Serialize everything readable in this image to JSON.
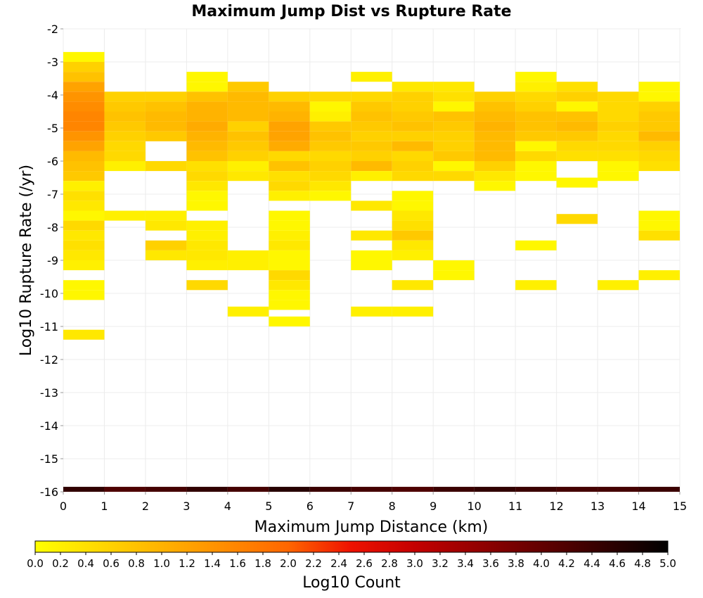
{
  "chart_data": {
    "type": "heatmap",
    "title": "Maximum Jump Dist vs Rupture Rate",
    "xlabel": "Maximum Jump Distance (km)",
    "ylabel": "Log10 Rupture Rate (/yr)",
    "colorbar_label": "Log10 Count",
    "xlim": [
      0,
      15
    ],
    "ylim": [
      -16,
      -2
    ],
    "x_ticks": [
      0,
      1,
      2,
      3,
      4,
      5,
      6,
      7,
      8,
      9,
      10,
      11,
      12,
      13,
      14,
      15
    ],
    "y_ticks": [
      -2,
      -3,
      -4,
      -5,
      -6,
      -7,
      -8,
      -9,
      -10,
      -11,
      -12,
      -13,
      -14,
      -15,
      -16
    ],
    "color_range": [
      0.0,
      5.0
    ],
    "colorbar_ticks": [
      "0.0",
      "0.2",
      "0.4",
      "0.6",
      "0.8",
      "1.0",
      "1.2",
      "1.4",
      "1.6",
      "1.8",
      "2.0",
      "2.2",
      "2.4",
      "2.6",
      "2.8",
      "3.0",
      "3.2",
      "3.4",
      "3.6",
      "3.8",
      "4.0",
      "4.2",
      "4.4",
      "4.6",
      "4.8",
      "5.0"
    ],
    "colormap": [
      "#ffff00",
      "#ff6600",
      "#cc0000",
      "#000000"
    ],
    "grid": true,
    "x_bin_width": 1,
    "y_bin_height": 0.3,
    "cells": [
      [
        0,
        -2.85,
        0.1
      ],
      [
        0,
        -3.15,
        0.6
      ],
      [
        0,
        -3.45,
        0.8
      ],
      [
        0,
        -3.75,
        1.2
      ],
      [
        0,
        -4.05,
        1.4
      ],
      [
        0,
        -4.35,
        1.5
      ],
      [
        0,
        -4.65,
        1.6
      ],
      [
        0,
        -4.95,
        1.6
      ],
      [
        0,
        -5.25,
        1.4
      ],
      [
        0,
        -5.55,
        1.2
      ],
      [
        0,
        -5.85,
        0.9
      ],
      [
        0,
        -6.15,
        0.8
      ],
      [
        0,
        -6.45,
        0.7
      ],
      [
        0,
        -6.75,
        0.2
      ],
      [
        0,
        -7.05,
        0.4
      ],
      [
        0,
        -7.35,
        0.3
      ],
      [
        0,
        -7.65,
        0.1
      ],
      [
        0,
        -7.95,
        0.5
      ],
      [
        0,
        -8.25,
        0.3
      ],
      [
        0,
        -8.55,
        0.4
      ],
      [
        0,
        -8.85,
        0.3
      ],
      [
        0,
        -9.15,
        0.2
      ],
      [
        0,
        -9.75,
        0.1
      ],
      [
        0,
        -10.05,
        0.1
      ],
      [
        0,
        -11.25,
        0.3
      ],
      [
        0,
        -16.0,
        4.5
      ],
      [
        1,
        -4.05,
        0.6
      ],
      [
        1,
        -4.35,
        0.7
      ],
      [
        1,
        -4.65,
        0.8
      ],
      [
        1,
        -4.95,
        0.7
      ],
      [
        1,
        -5.25,
        0.6
      ],
      [
        1,
        -5.55,
        0.5
      ],
      [
        1,
        -5.85,
        0.5
      ],
      [
        1,
        -6.15,
        0.2
      ],
      [
        1,
        -7.65,
        0.2
      ],
      [
        1,
        -16.0,
        4.2
      ],
      [
        2,
        -4.05,
        0.6
      ],
      [
        2,
        -4.35,
        0.8
      ],
      [
        2,
        -4.65,
        0.9
      ],
      [
        2,
        -4.95,
        0.9
      ],
      [
        2,
        -5.25,
        0.7
      ],
      [
        2,
        -6.15,
        0.5
      ],
      [
        2,
        -7.65,
        0.2
      ],
      [
        2,
        -7.95,
        0.3
      ],
      [
        2,
        -8.55,
        0.6
      ],
      [
        2,
        -8.85,
        0.3
      ],
      [
        2,
        -16.0,
        4.3
      ],
      [
        3,
        -3.45,
        0.1
      ],
      [
        3,
        -3.75,
        0.1
      ],
      [
        3,
        -4.05,
        0.8
      ],
      [
        3,
        -4.35,
        1.0
      ],
      [
        3,
        -4.65,
        1.0
      ],
      [
        3,
        -4.95,
        1.1
      ],
      [
        3,
        -5.25,
        1.0
      ],
      [
        3,
        -5.55,
        0.9
      ],
      [
        3,
        -5.85,
        0.8
      ],
      [
        3,
        -6.15,
        0.4
      ],
      [
        3,
        -6.45,
        0.5
      ],
      [
        3,
        -6.75,
        0.3
      ],
      [
        3,
        -7.05,
        0.1
      ],
      [
        3,
        -7.35,
        0.1
      ],
      [
        3,
        -7.95,
        0.2
      ],
      [
        3,
        -8.25,
        0.2
      ],
      [
        3,
        -8.55,
        0.3
      ],
      [
        3,
        -8.85,
        0.3
      ],
      [
        3,
        -9.15,
        0.2
      ],
      [
        3,
        -9.75,
        0.5
      ],
      [
        3,
        -16.0,
        4.5
      ],
      [
        4,
        -3.75,
        0.7
      ],
      [
        4,
        -4.05,
        0.9
      ],
      [
        4,
        -4.35,
        0.9
      ],
      [
        4,
        -4.65,
        0.9
      ],
      [
        4,
        -4.95,
        0.6
      ],
      [
        4,
        -5.25,
        0.8
      ],
      [
        4,
        -5.55,
        0.7
      ],
      [
        4,
        -5.85,
        0.6
      ],
      [
        4,
        -6.15,
        0.2
      ],
      [
        4,
        -6.45,
        0.3
      ],
      [
        4,
        -8.85,
        0.2
      ],
      [
        4,
        -9.15,
        0.2
      ],
      [
        4,
        -10.55,
        0.2
      ],
      [
        4,
        -16.0,
        4.3
      ],
      [
        5,
        -4.05,
        0.6
      ],
      [
        5,
        -4.35,
        0.9
      ],
      [
        5,
        -4.65,
        1.0
      ],
      [
        5,
        -4.95,
        1.2
      ],
      [
        5,
        -5.25,
        1.2
      ],
      [
        5,
        -5.55,
        1.1
      ],
      [
        5,
        -5.85,
        0.5
      ],
      [
        5,
        -6.15,
        0.8
      ],
      [
        5,
        -6.45,
        0.4
      ],
      [
        5,
        -6.75,
        0.5
      ],
      [
        5,
        -7.05,
        0.2
      ],
      [
        5,
        -7.65,
        0.1
      ],
      [
        5,
        -7.95,
        0.1
      ],
      [
        5,
        -8.25,
        0.2
      ],
      [
        5,
        -8.55,
        0.3
      ],
      [
        5,
        -8.85,
        0.1
      ],
      [
        5,
        -9.15,
        0.1
      ],
      [
        5,
        -9.45,
        0.5
      ],
      [
        5,
        -9.75,
        0.3
      ],
      [
        5,
        -10.05,
        0.1
      ],
      [
        5,
        -10.35,
        0.1
      ],
      [
        5,
        -10.85,
        0.1
      ],
      [
        5,
        -16.0,
        4.6
      ],
      [
        6,
        -4.05,
        0.5
      ],
      [
        6,
        -4.35,
        0.1
      ],
      [
        6,
        -4.65,
        0.2
      ],
      [
        6,
        -4.95,
        0.7
      ],
      [
        6,
        -5.25,
        0.8
      ],
      [
        6,
        -5.55,
        0.7
      ],
      [
        6,
        -5.85,
        0.5
      ],
      [
        6,
        -6.15,
        0.6
      ],
      [
        6,
        -6.45,
        0.5
      ],
      [
        6,
        -6.75,
        0.3
      ],
      [
        6,
        -7.05,
        0.1
      ],
      [
        6,
        -16.0,
        4.4
      ],
      [
        7,
        -3.45,
        0.2
      ],
      [
        7,
        -4.05,
        0.5
      ],
      [
        7,
        -4.35,
        0.7
      ],
      [
        7,
        -4.65,
        0.8
      ],
      [
        7,
        -4.95,
        0.7
      ],
      [
        7,
        -5.25,
        0.6
      ],
      [
        7,
        -5.55,
        0.7
      ],
      [
        7,
        -5.85,
        0.6
      ],
      [
        7,
        -6.15,
        0.9
      ],
      [
        7,
        -6.45,
        0.2
      ],
      [
        7,
        -7.35,
        0.3
      ],
      [
        7,
        -8.25,
        0.3
      ],
      [
        7,
        -8.85,
        0.1
      ],
      [
        7,
        -9.15,
        0.1
      ],
      [
        7,
        -10.55,
        0.2
      ],
      [
        7,
        -16.0,
        4.3
      ],
      [
        8,
        -3.75,
        0.3
      ],
      [
        8,
        -4.05,
        0.6
      ],
      [
        8,
        -4.35,
        0.6
      ],
      [
        8,
        -4.65,
        0.7
      ],
      [
        8,
        -4.95,
        0.8
      ],
      [
        8,
        -5.25,
        0.6
      ],
      [
        8,
        -5.55,
        0.9
      ],
      [
        8,
        -5.85,
        0.5
      ],
      [
        8,
        -6.15,
        0.6
      ],
      [
        8,
        -6.45,
        0.5
      ],
      [
        8,
        -7.05,
        0.1
      ],
      [
        8,
        -7.35,
        0.1
      ],
      [
        8,
        -7.65,
        0.3
      ],
      [
        8,
        -7.95,
        0.4
      ],
      [
        8,
        -8.25,
        0.7
      ],
      [
        8,
        -8.55,
        0.3
      ],
      [
        8,
        -8.85,
        0.2
      ],
      [
        8,
        -9.75,
        0.3
      ],
      [
        8,
        -10.55,
        0.2
      ],
      [
        8,
        -16.0,
        4.2
      ],
      [
        9,
        -3.75,
        0.3
      ],
      [
        9,
        -4.05,
        0.4
      ],
      [
        9,
        -4.35,
        0.1
      ],
      [
        9,
        -4.65,
        0.8
      ],
      [
        9,
        -4.95,
        0.7
      ],
      [
        9,
        -5.25,
        0.6
      ],
      [
        9,
        -5.55,
        0.6
      ],
      [
        9,
        -5.85,
        0.7
      ],
      [
        9,
        -6.15,
        0.1
      ],
      [
        9,
        -6.45,
        0.5
      ],
      [
        9,
        -9.15,
        0.1
      ],
      [
        9,
        -9.45,
        0.1
      ],
      [
        9,
        -16.0,
        4.4
      ],
      [
        10,
        -4.05,
        0.6
      ],
      [
        10,
        -4.35,
        0.8
      ],
      [
        10,
        -4.65,
        0.9
      ],
      [
        10,
        -4.95,
        1.0
      ],
      [
        10,
        -5.25,
        0.9
      ],
      [
        10,
        -5.55,
        0.9
      ],
      [
        10,
        -5.85,
        0.9
      ],
      [
        10,
        -6.15,
        0.6
      ],
      [
        10,
        -6.45,
        0.3
      ],
      [
        10,
        -6.75,
        0.1
      ],
      [
        10,
        -16.0,
        4.5
      ],
      [
        11,
        -3.45,
        0.1
      ],
      [
        11,
        -3.75,
        0.2
      ],
      [
        11,
        -4.05,
        0.5
      ],
      [
        11,
        -4.35,
        0.6
      ],
      [
        11,
        -4.65,
        0.8
      ],
      [
        11,
        -4.95,
        0.8
      ],
      [
        11,
        -5.25,
        0.7
      ],
      [
        11,
        -5.55,
        0.1
      ],
      [
        11,
        -5.85,
        0.5
      ],
      [
        11,
        -6.15,
        0.1
      ],
      [
        11,
        -6.45,
        0.1
      ],
      [
        11,
        -8.55,
        0.1
      ],
      [
        11,
        -9.75,
        0.2
      ],
      [
        11,
        -16.0,
        4.4
      ],
      [
        12,
        -3.75,
        0.4
      ],
      [
        12,
        -4.05,
        0.6
      ],
      [
        12,
        -4.35,
        0.1
      ],
      [
        12,
        -4.65,
        0.8
      ],
      [
        12,
        -4.95,
        0.9
      ],
      [
        12,
        -5.25,
        0.7
      ],
      [
        12,
        -5.55,
        0.5
      ],
      [
        12,
        -5.85,
        0.4
      ],
      [
        12,
        -6.65,
        0.1
      ],
      [
        12,
        -7.75,
        0.5
      ],
      [
        12,
        -16.0,
        4.3
      ],
      [
        13,
        -4.05,
        0.5
      ],
      [
        13,
        -4.35,
        0.5
      ],
      [
        13,
        -4.65,
        0.5
      ],
      [
        13,
        -4.95,
        0.6
      ],
      [
        13,
        -5.25,
        0.5
      ],
      [
        13,
        -5.55,
        0.5
      ],
      [
        13,
        -5.85,
        0.4
      ],
      [
        13,
        -6.15,
        0.1
      ],
      [
        13,
        -6.45,
        0.1
      ],
      [
        13,
        -9.75,
        0.2
      ],
      [
        13,
        -16.0,
        4.3
      ],
      [
        14,
        -3.75,
        0.1
      ],
      [
        14,
        -4.05,
        0.1
      ],
      [
        14,
        -4.35,
        0.6
      ],
      [
        14,
        -4.65,
        0.7
      ],
      [
        14,
        -4.95,
        0.7
      ],
      [
        14,
        -5.25,
        0.9
      ],
      [
        14,
        -5.55,
        0.6
      ],
      [
        14,
        -5.85,
        0.5
      ],
      [
        14,
        -6.15,
        0.4
      ],
      [
        14,
        -7.65,
        0.1
      ],
      [
        14,
        -7.95,
        0.1
      ],
      [
        14,
        -8.25,
        0.4
      ],
      [
        14,
        -9.45,
        0.2
      ],
      [
        14,
        -16.0,
        4.4
      ]
    ]
  }
}
